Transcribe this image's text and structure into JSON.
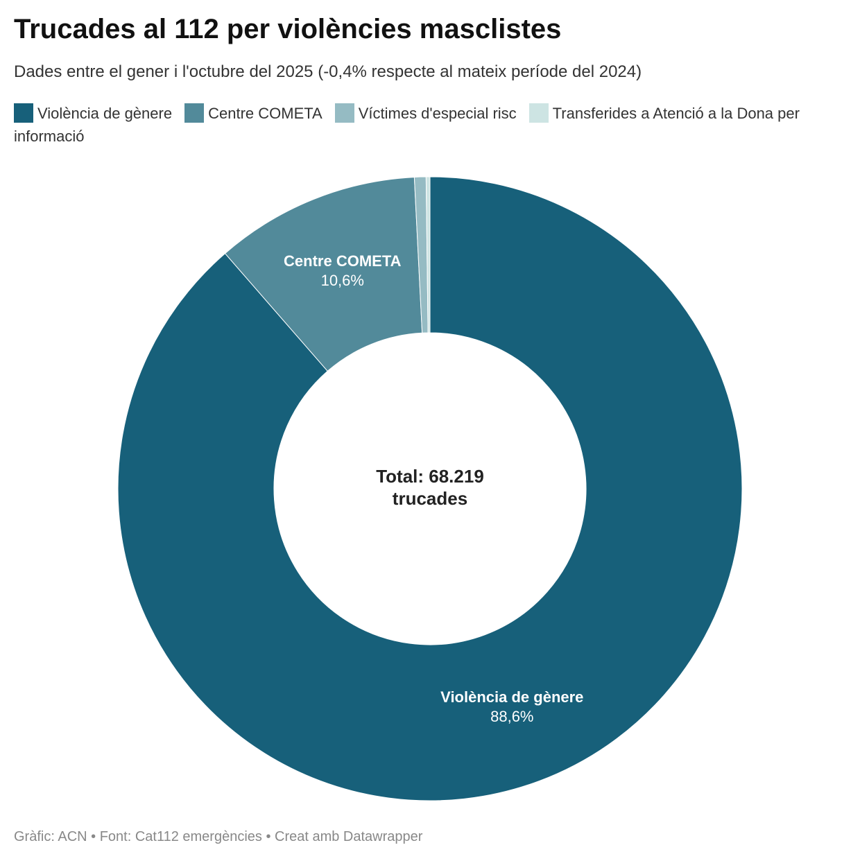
{
  "chart_data": {
    "type": "donut",
    "title": "Trucades al 112 per violències masclistes",
    "subtitle": "Dades entre el gener i l'octubre del 2025 (-0,4% respecte al mateix període del 2024)",
    "categories": [
      "Violència de gènere",
      "Centre COMETA",
      "Víctimes d'especial risc",
      "Transferides a Atenció a la Dona per informació"
    ],
    "values": [
      88.6,
      10.6,
      0.6,
      0.2
    ],
    "value_labels": [
      "88,6%",
      "10,6%",
      null,
      null
    ],
    "colors": [
      "#17607a",
      "#528a9a",
      "#95bbc3",
      "#cde4e3"
    ],
    "center_label": [
      "Total: 68.219",
      "trucades"
    ],
    "source": "Gràfic: ACN • Font: Cat112 emergències • Creat amb Datawrapper",
    "legend": "top"
  }
}
